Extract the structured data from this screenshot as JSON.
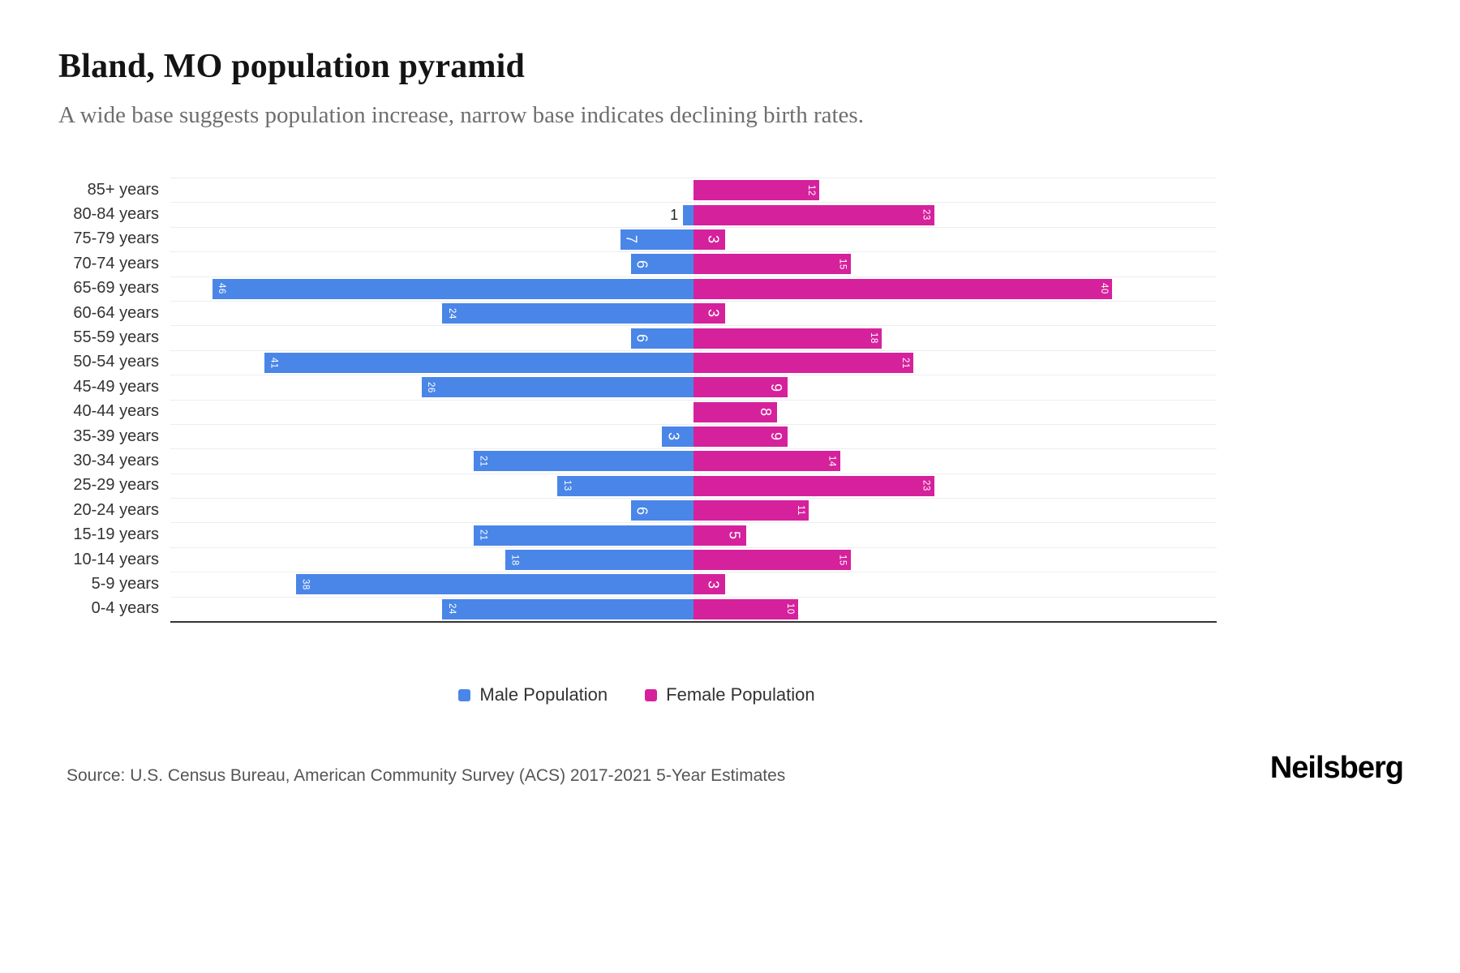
{
  "chart_data": {
    "type": "bar",
    "variant": "population-pyramid",
    "title": "Bland, MO population pyramid",
    "subtitle": "A wide base suggests population increase, narrow base indicates declining birth rates.",
    "categories": [
      "85+ years",
      "80-84 years",
      "75-79 years",
      "70-74 years",
      "65-69 years",
      "60-64 years",
      "55-59 years",
      "50-54 years",
      "45-49 years",
      "40-44 years",
      "35-39 years",
      "30-34 years",
      "25-29 years",
      "20-24 years",
      "15-19 years",
      "10-14 years",
      "5-9 years",
      "0-4 years"
    ],
    "series": [
      {
        "name": "Male Population",
        "color": "#4a86e8",
        "values": [
          0,
          1,
          7,
          6,
          46,
          24,
          6,
          41,
          26,
          0,
          3,
          21,
          13,
          6,
          21,
          18,
          38,
          24
        ]
      },
      {
        "name": "Female Population",
        "color": "#d6219c",
        "values": [
          12,
          23,
          3,
          15,
          40,
          3,
          18,
          21,
          9,
          8,
          9,
          14,
          23,
          11,
          5,
          15,
          3,
          10
        ]
      }
    ],
    "xmax_per_side": 50,
    "grid": true,
    "legend_position": "bottom-center",
    "value_labels": "rotated-at-bar-ends",
    "gridline_color": "#ededed",
    "axis_line_color": "#333333"
  },
  "footer": {
    "source": "Source: U.S. Census Bureau, American Community Survey (ACS) 2017-2021 5-Year Estimates",
    "brand": "Neilsberg"
  }
}
